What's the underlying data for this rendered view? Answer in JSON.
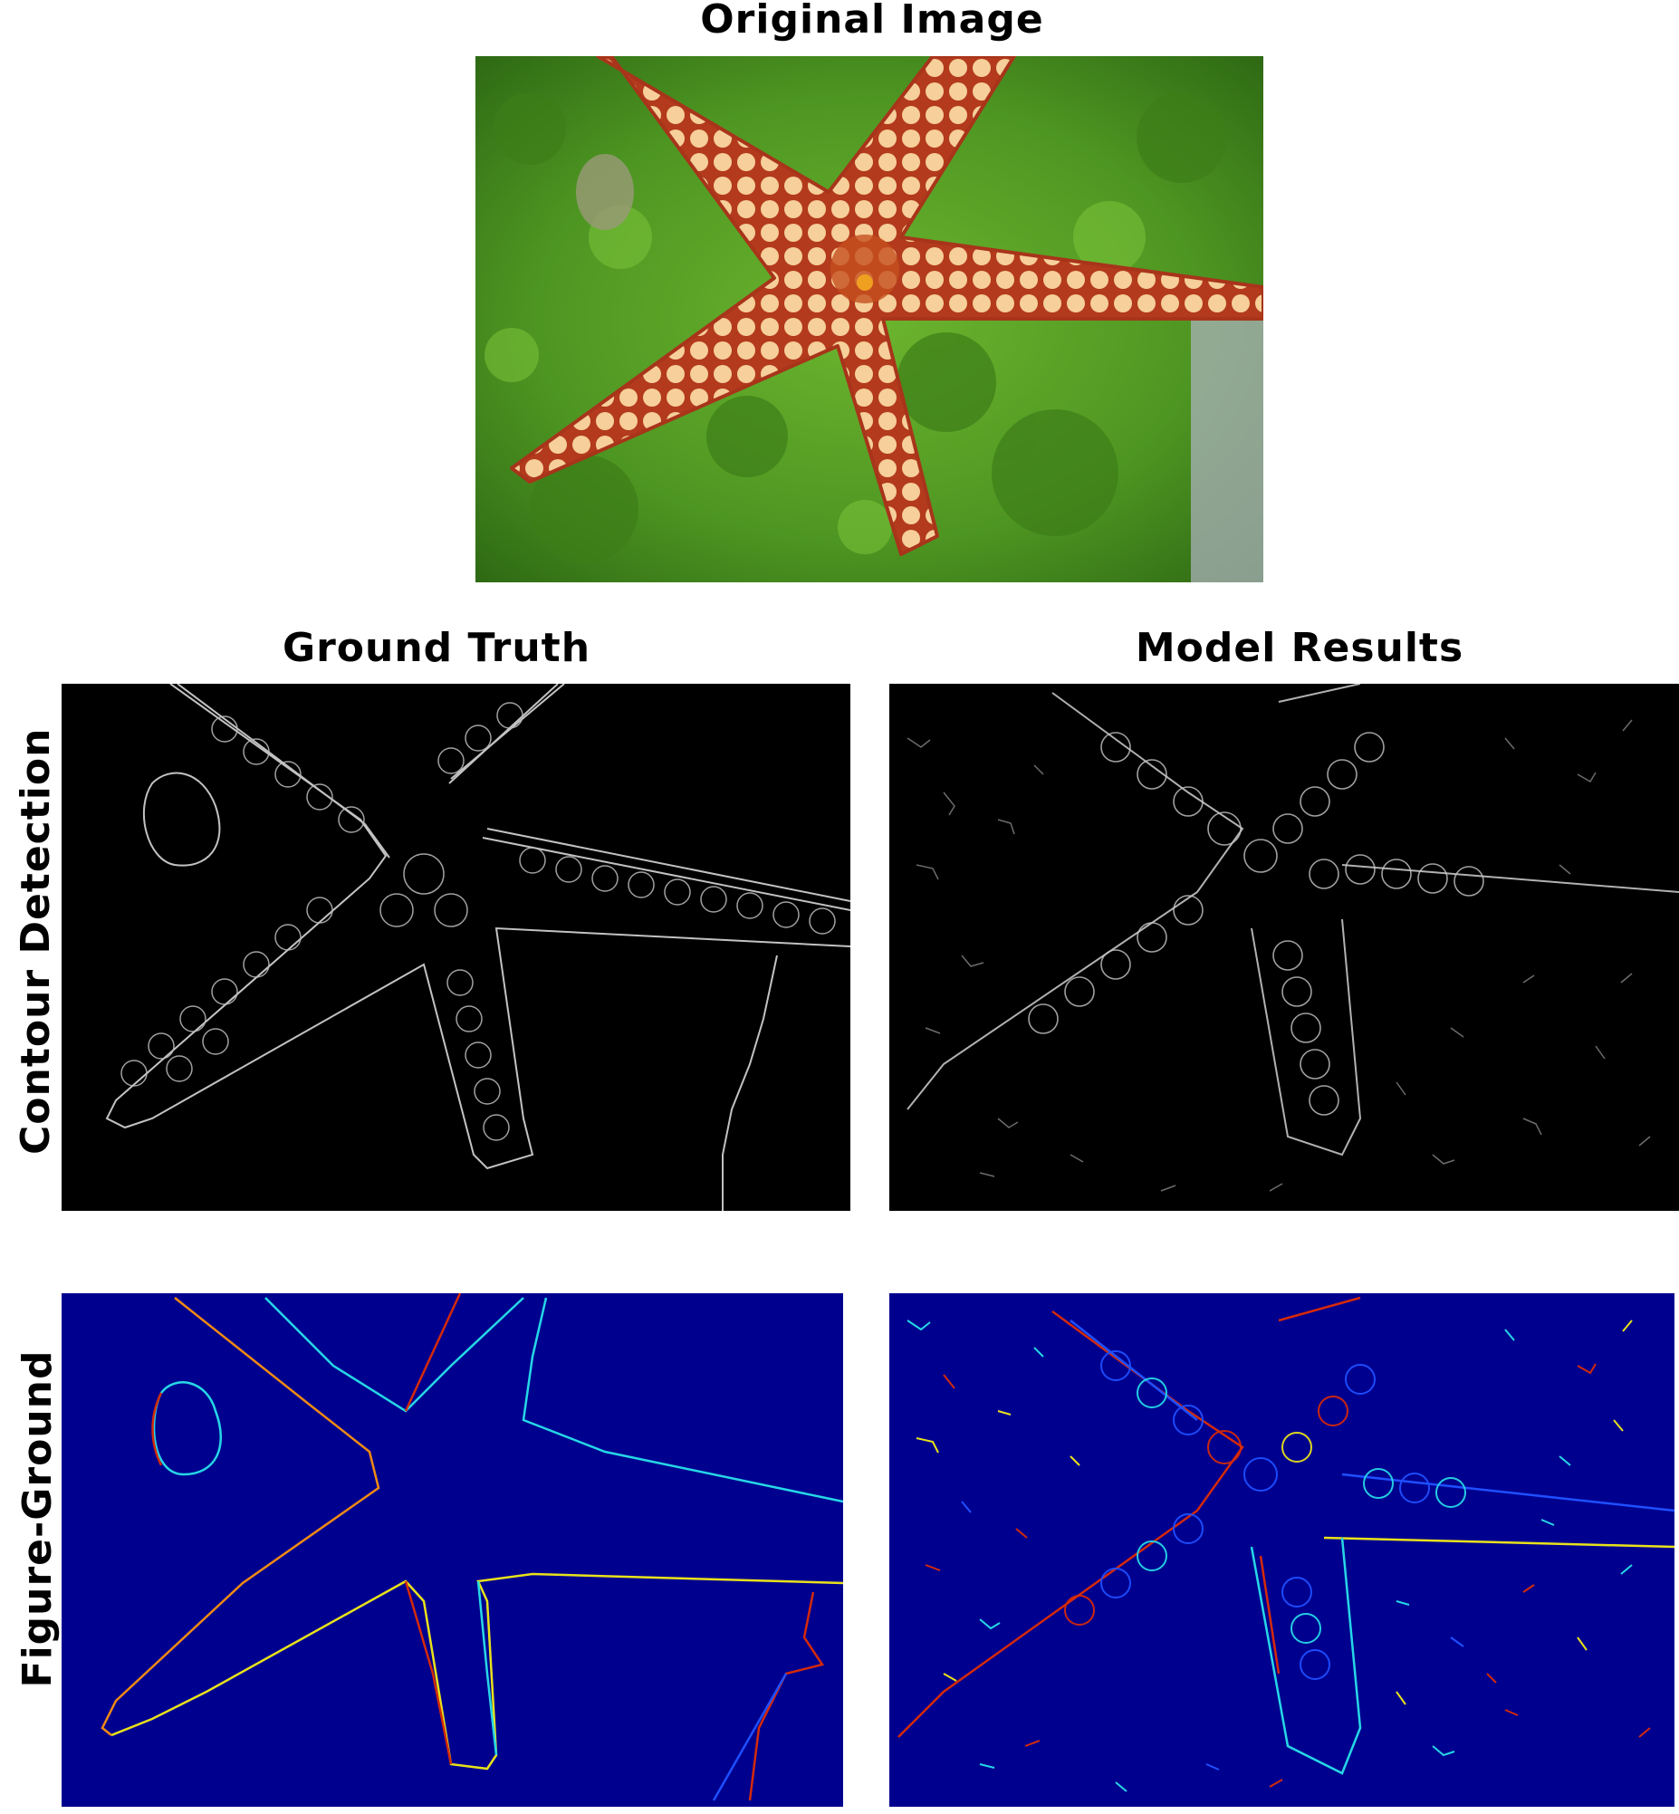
{
  "figure": {
    "original_title": "Original Image",
    "gt_title": "Ground Truth",
    "model_title": "Model Results",
    "row1_label": "Contour Detection",
    "row2_label": "Figure-Ground"
  },
  "colors": {
    "background": "#ffffff",
    "contour_bg": "#000000",
    "figure_ground_bg": "#00008f",
    "algae_green": "#5fa62a",
    "starfish_cream": "#f6cf9a",
    "starfish_red": "#b9401f",
    "fg_red": "#d42a0a",
    "fg_orange": "#f08a12",
    "fg_yellow": "#e8e21a",
    "fg_cyan": "#26d7e6",
    "fg_blue": "#1f4fff"
  },
  "panels": {
    "original": "starfish-photo",
    "contour_gt": "contour-ground-truth",
    "contour_model": "contour-model-results",
    "fg_gt": "figure-ground-ground-truth",
    "fg_model": "figure-ground-model-results"
  }
}
